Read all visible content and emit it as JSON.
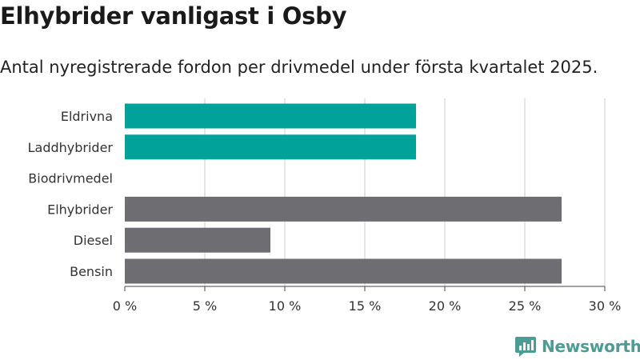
{
  "title": "Elhybrider vanligast i Osby",
  "subtitle": "Antal nyregistrerade fordon per drivmedel under första kvartalet 2025.",
  "brand": {
    "name": "Newsworthy",
    "color": "#4b9c95",
    "icon": "newsworthy-logo-icon"
  },
  "chart_data": {
    "type": "bar",
    "orientation": "horizontal",
    "categories": [
      "Eldrivna",
      "Laddhybrider",
      "Biodrivmedel",
      "Elhybrider",
      "Diesel",
      "Bensin"
    ],
    "values": [
      18.2,
      18.2,
      0,
      27.3,
      9.1,
      27.3
    ],
    "colors": [
      "#00a29a",
      "#00a29a",
      "#00a29a",
      "#6e6d72",
      "#6e6d72",
      "#6e6d72"
    ],
    "xlim": [
      0,
      30
    ],
    "xticks": [
      0,
      5,
      10,
      15,
      20,
      25,
      30
    ],
    "xtick_labels": [
      "0 %",
      "5 %",
      "10 %",
      "15 %",
      "20 %",
      "25 %",
      "30 %"
    ],
    "grid": "vertical"
  }
}
